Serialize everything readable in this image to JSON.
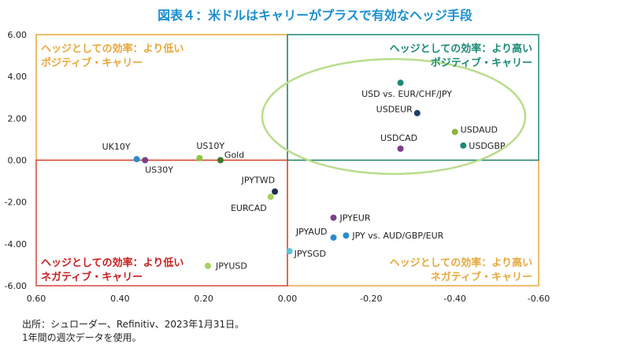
{
  "title": "図表４：米ドルはキャリーがプラスで有効なヘッジ手段",
  "notes": [
    "出所：シュローダー、Refinitiv、2023年1月31日。",
    "1年間の週次データを使用。"
  ],
  "colors": {
    "orange": "#e8a83c",
    "teal": "#1c8a78",
    "red": "#d8473b",
    "ellipse": "#b9dd8c"
  },
  "chart_data": {
    "type": "scatter",
    "xlim": [
      0.6,
      -0.6
    ],
    "ylim": [
      -6.0,
      6.0
    ],
    "x_ticks": [
      "0.60",
      "0.40",
      "0.20",
      "0.00",
      "-0.20",
      "-0.40",
      "-0.60"
    ],
    "y_ticks": [
      "6.00",
      "4.00",
      "2.00",
      "0.00",
      "-2.00",
      "-4.00",
      "-6.00"
    ],
    "points": [
      {
        "label": "USD vs. EUR/CHF/JPY",
        "x": -0.27,
        "y": 3.7,
        "color": "#1c8a78"
      },
      {
        "label": "USDEUR",
        "x": -0.31,
        "y": 2.25,
        "color": "#1f3c6b"
      },
      {
        "label": "USDAUD",
        "x": -0.4,
        "y": 1.35,
        "color": "#8cb43c"
      },
      {
        "label": "USDGBP",
        "x": -0.42,
        "y": 0.7,
        "color": "#1c8a78"
      },
      {
        "label": "USDCAD",
        "x": -0.27,
        "y": 0.55,
        "color": "#7a3f8c"
      },
      {
        "label": "UK10Y",
        "x": 0.36,
        "y": 0.05,
        "color": "#2a8cd0"
      },
      {
        "label": "US30Y",
        "x": 0.34,
        "y": 0.0,
        "color": "#7a3f8c"
      },
      {
        "label": "US10Y",
        "x": 0.21,
        "y": 0.1,
        "color": "#8cc63f"
      },
      {
        "label": "Gold",
        "x": 0.16,
        "y": 0.0,
        "color": "#3c7a2c"
      },
      {
        "label": "JPYTWD",
        "x": 0.03,
        "y": -1.5,
        "color": "#1f2d4a"
      },
      {
        "label": "EURCAD",
        "x": 0.04,
        "y": -1.75,
        "color": "#a8d060"
      },
      {
        "label": "JPYEUR",
        "x": -0.11,
        "y": -2.75,
        "color": "#7a3f8c"
      },
      {
        "label": "JPYAUD",
        "x": -0.11,
        "y": -3.7,
        "color": "#2a8cd0"
      },
      {
        "label": "JPY vs. AUD/GBP/EUR",
        "x": -0.14,
        "y": -3.6,
        "color": "#2a8cd0"
      },
      {
        "label": "JPYSGD",
        "x": -0.005,
        "y": -4.35,
        "color": "#5cc4d8"
      },
      {
        "label": "JPYUSD",
        "x": 0.19,
        "y": -5.05,
        "color": "#a8d060"
      }
    ],
    "quadrants": [
      {
        "line1": "ヘッジとしての効率：より低い",
        "line2": "ポジティブ・キャリー",
        "color": "#e8a83c"
      },
      {
        "line1": "ヘッジとしての効率：より高い",
        "line2": "ポジティブ・キャリー",
        "color": "#1c8a78"
      },
      {
        "line1": "ヘッジとしての効率：より低い",
        "line2": "ネガティブ・キャリー",
        "color": "#c8201e"
      },
      {
        "line1": "ヘッジとしての効率：より高い",
        "line2": "ネガティブ・キャリー",
        "color": "#e8a83c"
      }
    ]
  }
}
